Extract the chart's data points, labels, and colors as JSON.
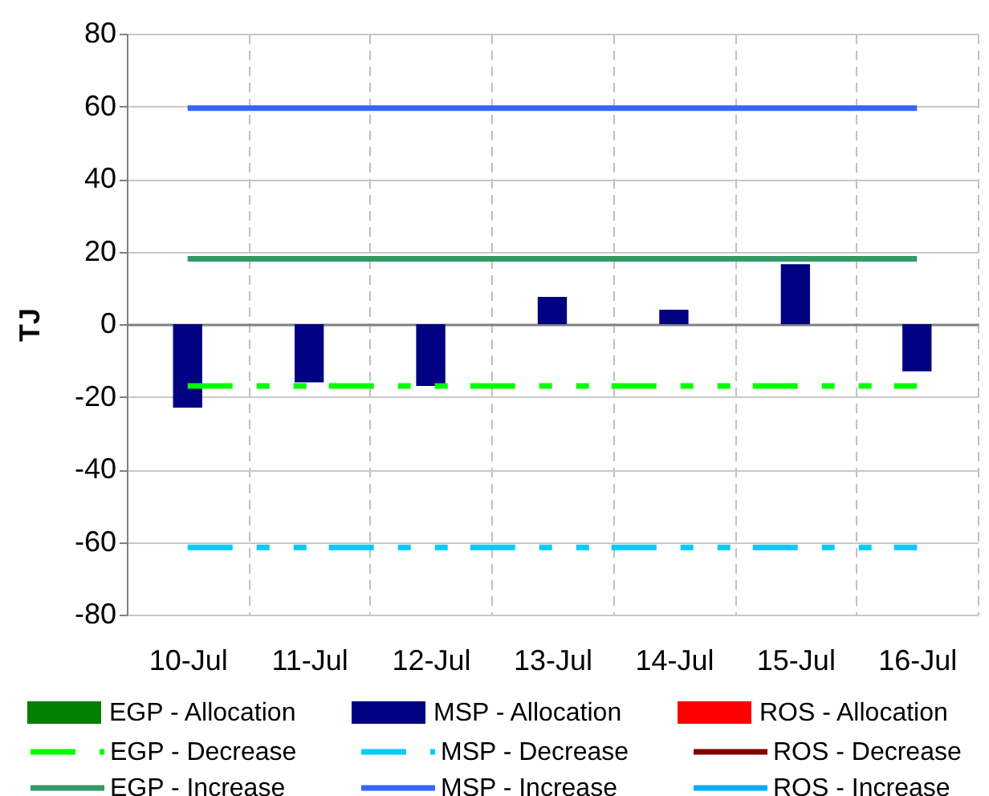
{
  "chart_data": {
    "type": "bar",
    "ylabel": "TJ",
    "ylim": [
      -80,
      80
    ],
    "yticks": [
      -80,
      -60,
      -40,
      -20,
      0,
      20,
      40,
      60,
      80
    ],
    "grid": true,
    "legend": "bottom",
    "categories": [
      "10-Jul",
      "11-Jul",
      "12-Jul",
      "13-Jul",
      "14-Jul",
      "15-Jul",
      "16-Jul"
    ],
    "series": [
      {
        "name": "EGP - Allocation",
        "color": "#008000",
        "values": [
          null,
          null,
          null,
          null,
          null,
          null,
          null
        ]
      },
      {
        "name": "MSP - Allocation",
        "color": "#000080",
        "values": [
          -23,
          -16,
          -17,
          7.5,
          4,
          16.5,
          -13
        ]
      },
      {
        "name": "ROS - Allocation",
        "color": "#ff0000",
        "values": [
          null,
          null,
          null,
          null,
          null,
          null,
          null
        ]
      },
      {
        "name": "EGP - Decrease",
        "type": "line",
        "line_style": "dashed",
        "color": "#00ff00",
        "values": [
          -17,
          -17,
          -17,
          -17,
          -17,
          -17,
          -17
        ]
      },
      {
        "name": "MSP - Decrease",
        "type": "line",
        "line_style": "dashed",
        "color": "#00ccff",
        "values": [
          -61.5,
          -61.5,
          -61.5,
          -61.5,
          -61.5,
          -61.5,
          -61.5
        ]
      },
      {
        "name": "ROS - Decrease",
        "type": "line",
        "color": "#800000",
        "values": [
          null,
          null,
          null,
          null,
          null,
          null,
          null
        ]
      },
      {
        "name": "EGP - Increase",
        "type": "line",
        "color": "#339966",
        "values": [
          18,
          18,
          18,
          18,
          18,
          18,
          18
        ]
      },
      {
        "name": "MSP - Increase",
        "type": "line",
        "color": "#3366ff",
        "values": [
          59.5,
          59.5,
          59.5,
          59.5,
          59.5,
          59.5,
          59.5
        ]
      },
      {
        "name": "ROS - Increase",
        "type": "line",
        "color": "#00b0f0",
        "values": [
          null,
          null,
          null,
          null,
          null,
          null,
          null
        ]
      }
    ]
  }
}
